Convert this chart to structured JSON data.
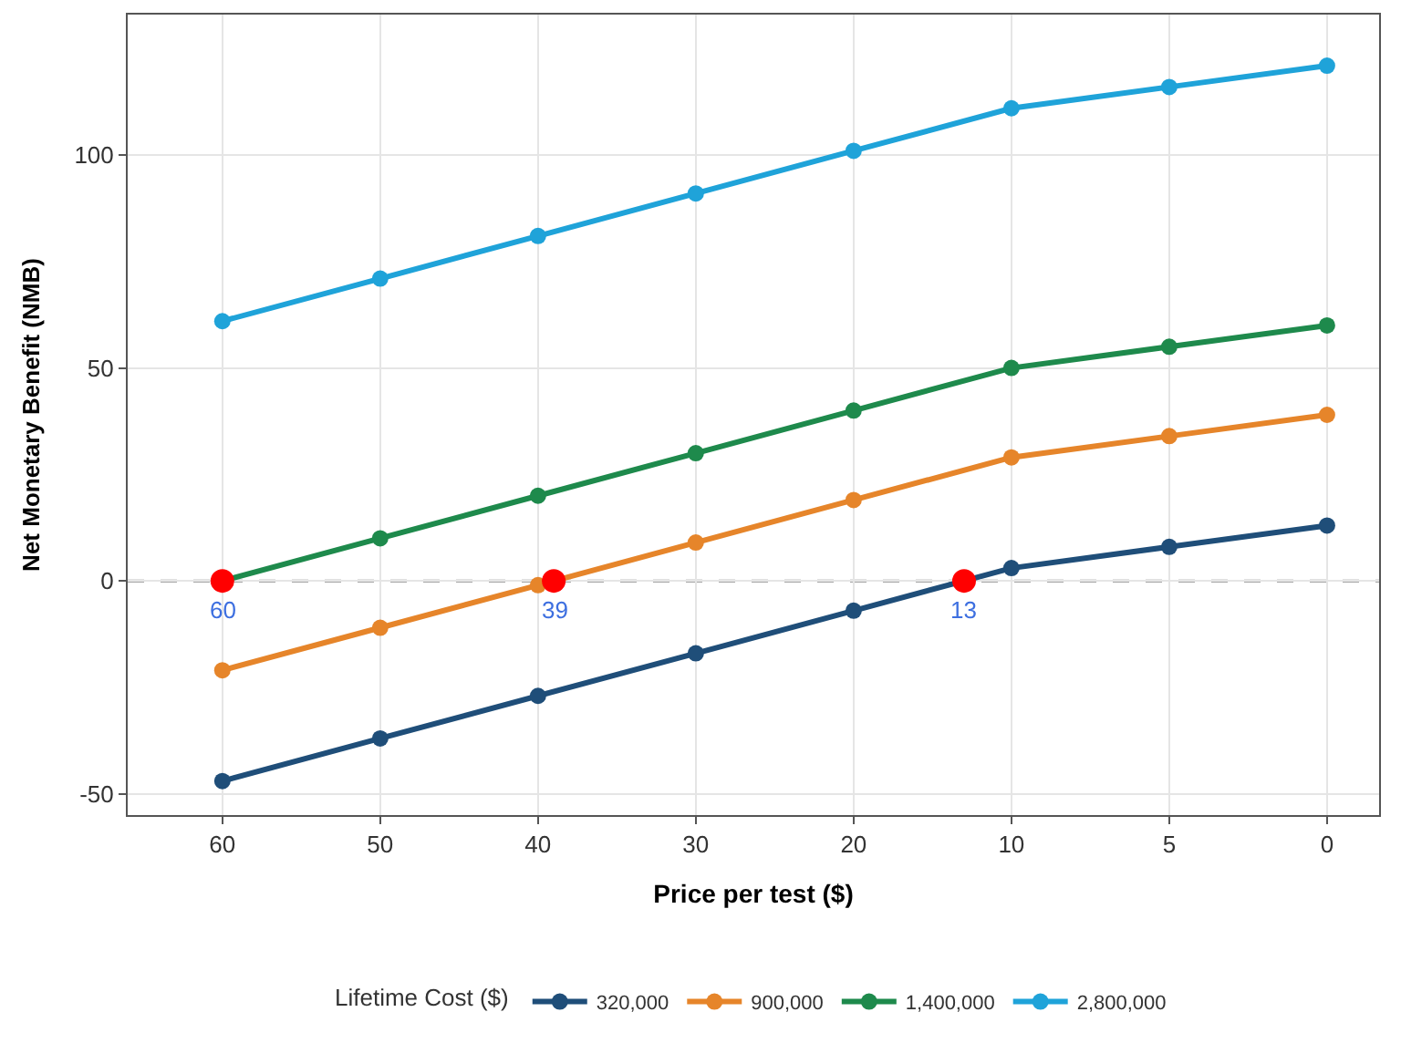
{
  "chart_data": {
    "type": "line",
    "xlabel": "Price per test ($)",
    "ylabel": "Net Monetary Benefit (NMB)",
    "legend_title": "Lifetime Cost ($)",
    "categories": [
      "60",
      "50",
      "40",
      "30",
      "20",
      "10",
      "5",
      "0"
    ],
    "ylim": [
      -55,
      133
    ],
    "yticks": [
      -50,
      0,
      50,
      100
    ],
    "series": [
      {
        "name": "320,000",
        "color": "#1f4e79",
        "values": [
          -47,
          -37,
          -27,
          -17,
          -7,
          3,
          8,
          13
        ]
      },
      {
        "name": "900,000",
        "color": "#e6852a",
        "values": [
          -21,
          -11,
          -1,
          9,
          19,
          29,
          34,
          39
        ]
      },
      {
        "name": "1,400,000",
        "color": "#1e8a4c",
        "values": [
          0,
          10,
          20,
          30,
          40,
          50,
          55,
          60
        ]
      },
      {
        "name": "2,800,000",
        "color": "#1fa3d9",
        "values": [
          61,
          71,
          81,
          91,
          101,
          111,
          116,
          121
        ]
      }
    ],
    "ref_lines": [
      {
        "axis": "y",
        "value": 0,
        "color": "#888888",
        "line_style": "dashed"
      }
    ],
    "annotations": [
      "60",
      "39",
      "13"
    ],
    "marker": "circle",
    "line_style": "solid",
    "grid": true,
    "legend": "bottom"
  }
}
